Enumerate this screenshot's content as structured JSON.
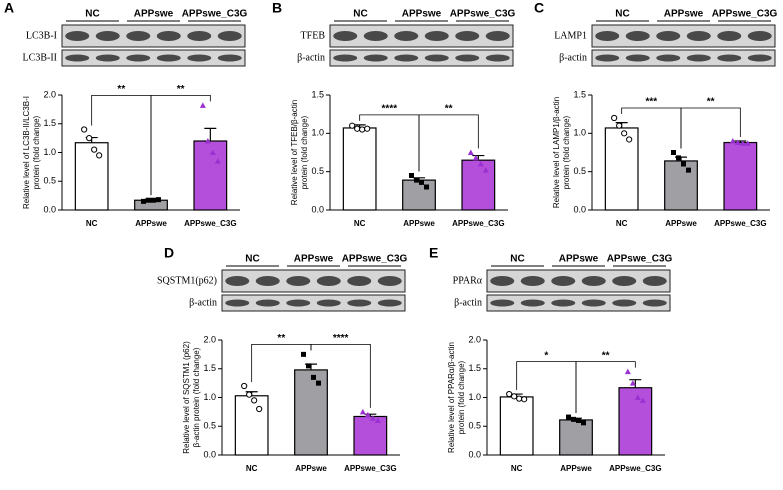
{
  "chart_data": [
    {
      "type": "bar",
      "panel": "A",
      "blot_rows": [
        "LC3B-I",
        "LC3B-II"
      ],
      "ylabel": [
        "Relative level of LC3B-II/LC3B-I",
        "protein (fold change)"
      ],
      "categories": [
        "NC",
        "APPswe",
        "APPswe_C3G"
      ],
      "colors": [
        "#ffffff",
        "#a0a0a4",
        "#b44fdc"
      ],
      "values": [
        1.17,
        0.17,
        1.2
      ],
      "errors": [
        0.09,
        0.02,
        0.22
      ],
      "points": [
        [
          1.4,
          1.25,
          1.05,
          0.95
        ],
        [
          0.15,
          0.17,
          0.17,
          0.18
        ],
        [
          1.82,
          1.2,
          1.0,
          0.85
        ]
      ],
      "ylim": [
        0,
        2.0
      ],
      "yticks": [
        {
          "value": 0,
          "label": "0.0"
        },
        {
          "value": 0.5,
          "label": "0.5"
        },
        {
          "value": 1.0,
          "label": "1.0"
        },
        {
          "value": 1.5,
          "label": "1.5"
        },
        {
          "value": 2.0,
          "label": "2.0"
        }
      ],
      "annotations": [
        {
          "text": "**",
          "between": [
            "NC",
            "APPswe"
          ]
        },
        {
          "text": "**",
          "between": [
            "APPswe",
            "APPswe_C3G"
          ]
        }
      ]
    },
    {
      "type": "bar",
      "panel": "B",
      "blot_rows": [
        "TFEB",
        "β-actin"
      ],
      "ylabel": [
        "Relative level of TFEB/β-actin",
        "protein (fold change)"
      ],
      "categories": [
        "NC",
        "APPswe",
        "APPswe_C3G"
      ],
      "colors": [
        "#ffffff",
        "#a0a0a4",
        "#b44fdc"
      ],
      "values": [
        1.07,
        0.39,
        0.65
      ],
      "errors": [
        0.04,
        0.03,
        0.06
      ],
      "points": [
        [
          1.1,
          1.06,
          1.05,
          1.06
        ],
        [
          0.45,
          0.39,
          0.36,
          0.3
        ],
        [
          0.75,
          0.68,
          0.6,
          0.52
        ]
      ],
      "ylim": [
        0,
        1.5
      ],
      "yticks": [
        {
          "value": 0,
          "label": "0.0"
        },
        {
          "value": 0.5,
          "label": "0.5"
        },
        {
          "value": 1.0,
          "label": "1.0"
        },
        {
          "value": 1.5,
          "label": "1.5"
        }
      ],
      "annotations": [
        {
          "text": "****",
          "between": [
            "NC",
            "APPswe"
          ]
        },
        {
          "text": "**",
          "between": [
            "APPswe",
            "APPswe_C3G"
          ]
        }
      ]
    },
    {
      "type": "bar",
      "panel": "C",
      "blot_rows": [
        "LAMP1",
        "β-actin"
      ],
      "ylabel": [
        "Relative level of LAMP1/β-actin",
        "protein (fold change)"
      ],
      "categories": [
        "NC",
        "APPswe",
        "APPswe_C3G"
      ],
      "colors": [
        "#ffffff",
        "#a0a0a4",
        "#b44fdc"
      ],
      "values": [
        1.07,
        0.64,
        0.88
      ],
      "errors": [
        0.07,
        0.05,
        0.02
      ],
      "points": [
        [
          1.2,
          1.1,
          1.0,
          0.92
        ],
        [
          0.75,
          0.68,
          0.6,
          0.52
        ],
        [
          0.9,
          0.88,
          0.87,
          0.87
        ]
      ],
      "ylim": [
        0,
        1.5
      ],
      "yticks": [
        {
          "value": 0,
          "label": "0.0"
        },
        {
          "value": 0.5,
          "label": "0.5"
        },
        {
          "value": 1.0,
          "label": "1.0"
        },
        {
          "value": 1.5,
          "label": "1.5"
        }
      ],
      "annotations": [
        {
          "text": "***",
          "between": [
            "NC",
            "APPswe"
          ]
        },
        {
          "text": "**",
          "between": [
            "APPswe",
            "APPswe_C3G"
          ]
        }
      ]
    },
    {
      "type": "bar",
      "panel": "D",
      "blot_rows": [
        "SQSTM1(p62)",
        "β-actin"
      ],
      "ylabel": [
        "Relative level of SQSTM1 (p62)",
        "β-actin protein (fold change)"
      ],
      "categories": [
        "NC",
        "APPswe",
        "APPswe_C3G"
      ],
      "colors": [
        "#ffffff",
        "#a0a0a4",
        "#b44fdc"
      ],
      "values": [
        1.03,
        1.48,
        0.67
      ],
      "errors": [
        0.07,
        0.1,
        0.04
      ],
      "points": [
        [
          1.2,
          1.05,
          0.95,
          0.8
        ],
        [
          1.75,
          1.55,
          1.35,
          1.25
        ],
        [
          0.75,
          0.7,
          0.64,
          0.6
        ]
      ],
      "ylim": [
        0,
        2.0
      ],
      "yticks": [
        {
          "value": 0,
          "label": "0.0"
        },
        {
          "value": 0.5,
          "label": "0.5"
        },
        {
          "value": 1.0,
          "label": "1.0"
        },
        {
          "value": 1.5,
          "label": "1.5"
        },
        {
          "value": 2.0,
          "label": "2.0"
        }
      ],
      "annotations": [
        {
          "text": "**",
          "between": [
            "NC",
            "APPswe"
          ]
        },
        {
          "text": "****",
          "between": [
            "APPswe",
            "APPswe_C3G"
          ]
        }
      ]
    },
    {
      "type": "bar",
      "panel": "E",
      "blot_rows": [
        "PPARα",
        "β-actin"
      ],
      "ylabel": [
        "Relative level of PPARα/β-actin",
        "protein (fold change)"
      ],
      "categories": [
        "NC",
        "APPswe",
        "APPswe_C3G"
      ],
      "colors": [
        "#ffffff",
        "#a0a0a4",
        "#b44fdc"
      ],
      "values": [
        1.01,
        0.61,
        1.17
      ],
      "errors": [
        0.05,
        0.03,
        0.14
      ],
      "points": [
        [
          1.06,
          1.02,
          0.98,
          0.97
        ],
        [
          0.66,
          0.62,
          0.6,
          0.56
        ],
        [
          1.45,
          1.25,
          1.0,
          0.95
        ]
      ],
      "ylim": [
        0,
        2.0
      ],
      "yticks": [
        {
          "value": 0,
          "label": "0.0"
        },
        {
          "value": 0.5,
          "label": "0.5"
        },
        {
          "value": 1.0,
          "label": "1.0"
        },
        {
          "value": 1.5,
          "label": "1.5"
        },
        {
          "value": 2.0,
          "label": "2.0"
        }
      ],
      "annotations": [
        {
          "text": "*",
          "between": [
            "NC",
            "APPswe"
          ]
        },
        {
          "text": "**",
          "between": [
            "APPswe",
            "APPswe_C3G"
          ]
        }
      ]
    }
  ]
}
